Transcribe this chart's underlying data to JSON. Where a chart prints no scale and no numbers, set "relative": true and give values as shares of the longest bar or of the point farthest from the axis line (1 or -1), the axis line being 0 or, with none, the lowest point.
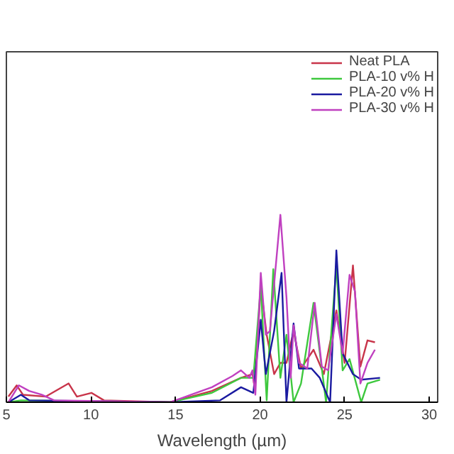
{
  "chart_data": {
    "type": "line",
    "xlabel": "Wavelength (µm)",
    "relative": true,
    "xlim": [
      5,
      30.5
    ],
    "xticks": [
      5,
      10,
      15,
      20,
      25,
      30
    ],
    "legend": "top right",
    "grid": false,
    "series": [
      {
        "name": "Neat PLA",
        "color": "#c8344a",
        "x": [
          5.12,
          5.61,
          5.98,
          7.33,
          8.68,
          9.17,
          10.03,
          10.77,
          14.69,
          17.15,
          18.87,
          19.55,
          19.68,
          20.04,
          20.39,
          20.83,
          21.2,
          21.56,
          21.98,
          22.42,
          23.16,
          23.77,
          24.51,
          25.0,
          25.49,
          25.93,
          26.35,
          26.79
        ],
        "values": [
          0.03,
          0.09,
          0.04,
          0.03,
          0.1,
          0.03,
          0.05,
          0.01,
          0,
          0.06,
          0.13,
          0.15,
          0.08,
          0.62,
          0.36,
          0.15,
          0.21,
          0.21,
          0.38,
          0.18,
          0.28,
          0.15,
          0.49,
          0.21,
          0.73,
          0.19,
          0.33,
          0.32
        ]
      },
      {
        "name": "PLA-10 v% H",
        "color": "#3ec83e",
        "x": [
          5.12,
          5.86,
          14.69,
          17.15,
          18.87,
          19.6,
          20.04,
          20.39,
          20.78,
          21.2,
          21.56,
          21.98,
          22.42,
          23.16,
          23.9,
          24.51,
          24.88,
          25.29,
          25.98,
          26.35,
          27.09
        ],
        "values": [
          0,
          0.01,
          0,
          0.05,
          0.13,
          0.13,
          0.62,
          0.01,
          0.71,
          0.13,
          0.36,
          0,
          0.1,
          0.53,
          0,
          0.73,
          0.17,
          0.23,
          0,
          0.1,
          0.12
        ]
      },
      {
        "name": "PLA-20 v% H",
        "color": "#1a1aa0",
        "x": [
          5.12,
          5.86,
          6.35,
          14.69,
          17.64,
          18.87,
          19.6,
          20.04,
          20.34,
          20.83,
          21.27,
          21.56,
          21.98,
          22.3,
          23.04,
          23.53,
          24.14,
          24.51,
          24.88,
          25.49,
          25.98,
          27.09
        ],
        "values": [
          0,
          0.04,
          0.01,
          0,
          0.01,
          0.08,
          0.05,
          0.44,
          0.15,
          0.38,
          0.69,
          0,
          0.42,
          0.18,
          0.18,
          0.13,
          0,
          0.81,
          0.26,
          0.15,
          0.12,
          0.13
        ]
      },
      {
        "name": "PLA-30 v% H",
        "color": "#c040c0",
        "x": [
          5.12,
          5.74,
          6.35,
          7.09,
          7.82,
          14.69,
          15.92,
          17.15,
          18.37,
          18.87,
          19.36,
          19.55,
          19.72,
          20.04,
          20.34,
          20.58,
          21.2,
          21.56,
          21.81,
          21.98,
          22.3,
          22.79,
          23.23,
          23.65,
          24.02,
          24.51,
          24.88,
          25.29,
          25.61,
          25.93,
          26.35,
          26.79
        ],
        "values": [
          0,
          0.09,
          0.06,
          0.04,
          0.01,
          0,
          0.04,
          0.08,
          0.14,
          0.17,
          0.13,
          0.17,
          0.04,
          0.69,
          0.36,
          0.38,
          1,
          0.56,
          0.13,
          0.41,
          0.21,
          0.18,
          0.53,
          0.19,
          0.17,
          0.47,
          0.26,
          0.68,
          0.59,
          0.1,
          0.21,
          0.28
        ]
      }
    ]
  }
}
